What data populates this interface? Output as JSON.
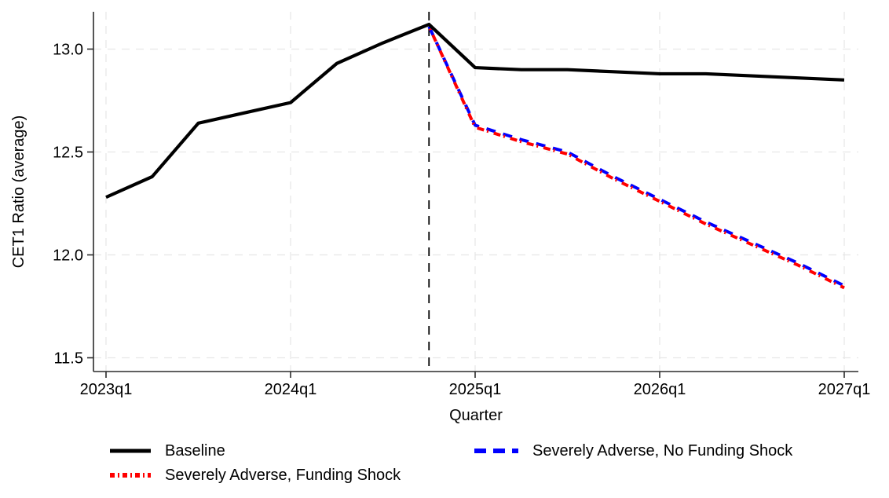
{
  "chart_data": {
    "type": "line",
    "title": "",
    "xlabel": "Quarter",
    "ylabel": "CET1 Ratio (average)",
    "x_tick_labels": [
      "2023q1",
      "2024q1",
      "2025q1",
      "2026q1",
      "2027q1"
    ],
    "y_tick_labels": [
      "11.5",
      "12.0",
      "12.5",
      "13.0"
    ],
    "xlim": [
      "2023q1",
      "2027q1"
    ],
    "ylim": [
      11.43,
      13.18
    ],
    "grid": true,
    "legend_position": "below",
    "reference_line_x": "2024q4",
    "series": [
      {
        "name": "Baseline",
        "color": "#000000",
        "style": "solid",
        "quarters": [
          "2023q1",
          "2023q2",
          "2023q3",
          "2023q4",
          "2024q1",
          "2024q2",
          "2024q3",
          "2024q4",
          "2025q1",
          "2025q2",
          "2025q3",
          "2025q4",
          "2026q1",
          "2026q2",
          "2026q3",
          "2026q4",
          "2027q1"
        ],
        "values": [
          12.28,
          12.38,
          12.64,
          12.69,
          12.74,
          12.93,
          13.03,
          13.12,
          12.91,
          12.9,
          12.9,
          12.89,
          12.88,
          12.88,
          12.87,
          12.86,
          12.85
        ]
      },
      {
        "name": "Severely Adverse, No Funding Shock",
        "color": "#0000ff",
        "style": "dashed",
        "quarters": [
          "2024q4",
          "2025q1",
          "2025q2",
          "2025q3",
          "2025q4",
          "2026q1",
          "2026q2",
          "2026q3",
          "2026q4",
          "2027q1"
        ],
        "values": [
          13.11,
          12.63,
          12.56,
          12.5,
          12.38,
          12.27,
          12.16,
          12.06,
          11.96,
          11.85
        ]
      },
      {
        "name": "Severely Adverse, Funding Shock",
        "color": "#ff0000",
        "style": "dash-dot",
        "quarters": [
          "2024q4",
          "2025q1",
          "2025q2",
          "2025q3",
          "2025q4",
          "2026q1",
          "2026q2",
          "2026q3",
          "2026q4",
          "2027q1"
        ],
        "values": [
          13.11,
          12.62,
          12.55,
          12.49,
          12.37,
          12.26,
          12.15,
          12.05,
          11.95,
          11.84
        ]
      }
    ],
    "colors": {
      "axis": "#2b2b2b",
      "grid": "#e7e7e7",
      "reference_line": "#000000",
      "text": "#000000",
      "background": "#ffffff"
    }
  }
}
